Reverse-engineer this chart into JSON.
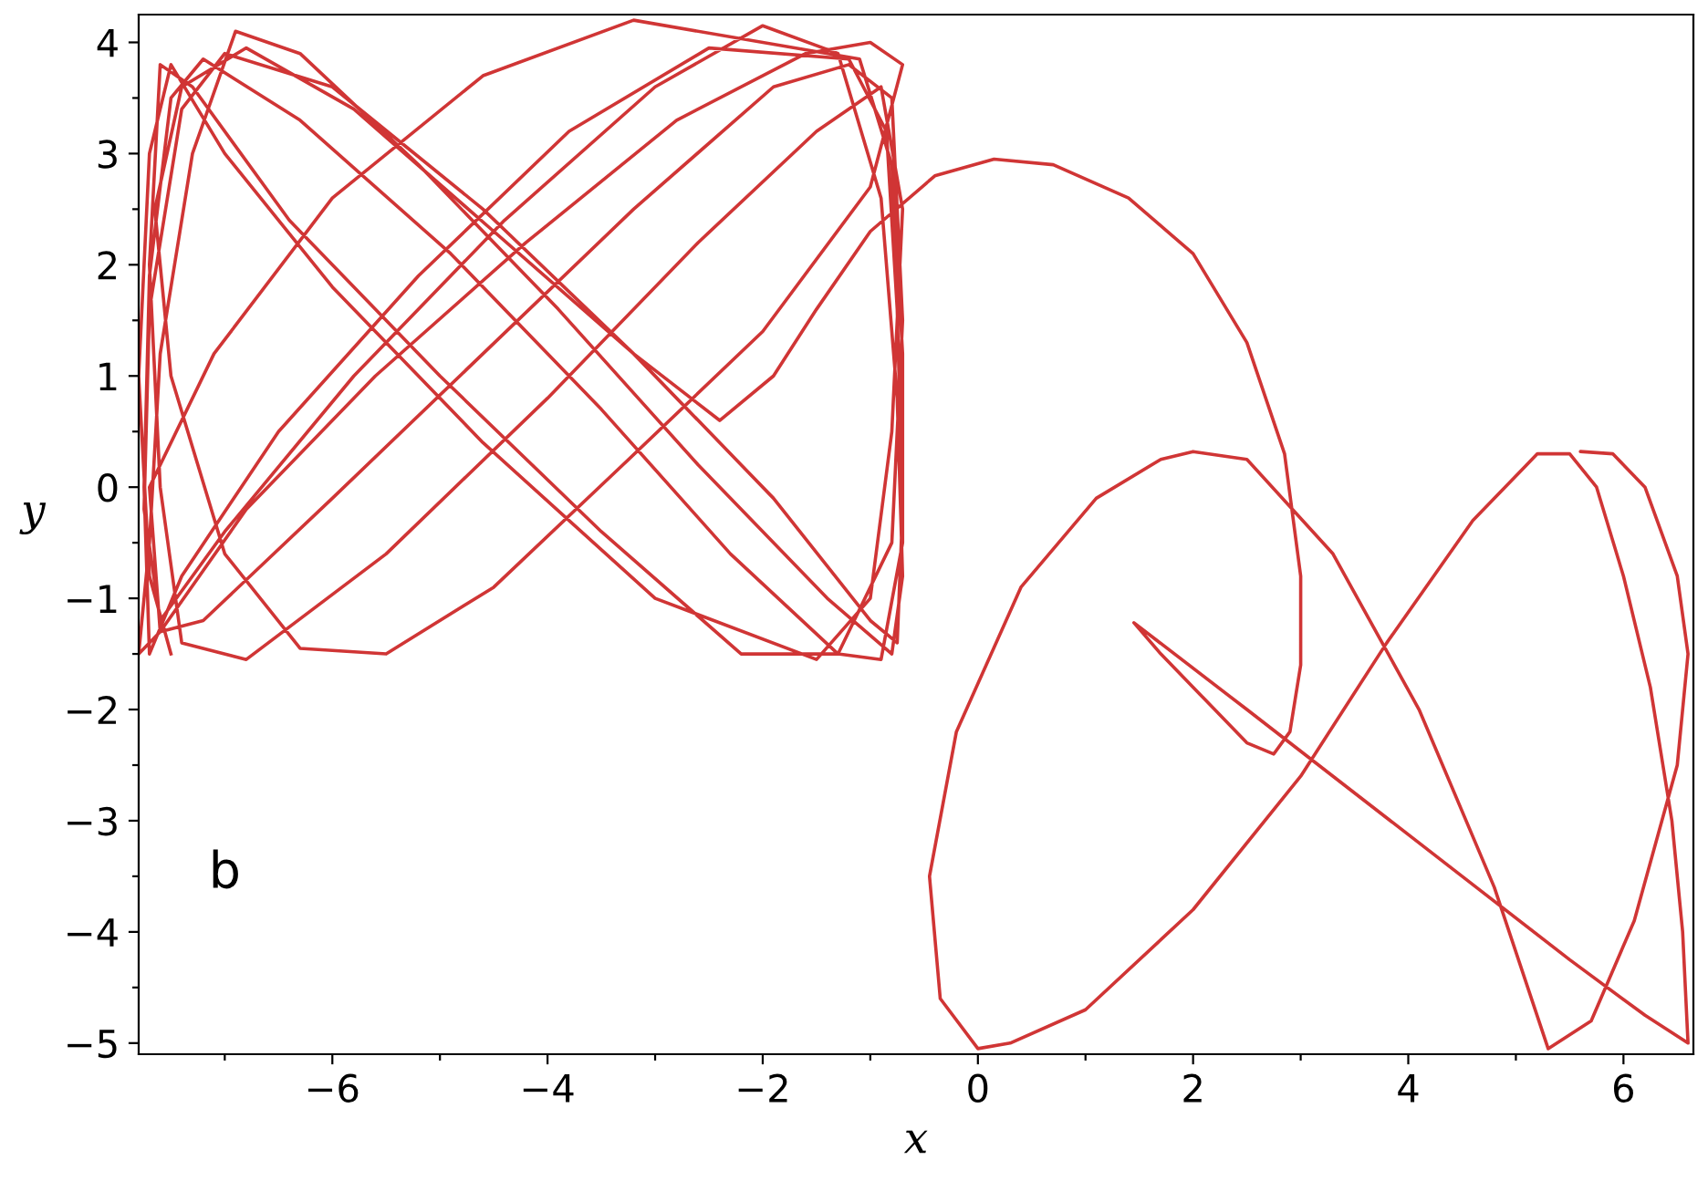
{
  "chart_data": {
    "type": "line",
    "xlabel": "x",
    "ylabel": "y",
    "annotations": [
      "b"
    ],
    "xlim": [
      -7.8,
      6.65
    ],
    "ylim": [
      -5.1,
      4.25
    ],
    "xticks": [
      {
        "value": -7,
        "label": null
      },
      {
        "value": -6,
        "label": "−6"
      },
      {
        "value": -5,
        "label": null
      },
      {
        "value": -4,
        "label": "−4"
      },
      {
        "value": -3,
        "label": null
      },
      {
        "value": -2,
        "label": "−2"
      },
      {
        "value": -1,
        "label": null
      },
      0,
      {
        "value": 1,
        "label": null
      },
      2,
      {
        "value": 3,
        "label": null
      },
      4,
      {
        "value": 5,
        "label": null
      },
      6
    ],
    "yticks": [
      {
        "value": -5,
        "label": "−5"
      },
      {
        "value": -4.5,
        "label": null
      },
      {
        "value": -4,
        "label": "−4"
      },
      {
        "value": -3.5,
        "label": null
      },
      {
        "value": -3,
        "label": "−3"
      },
      {
        "value": -2.5,
        "label": null
      },
      {
        "value": -2,
        "label": "−2"
      },
      {
        "value": -1.5,
        "label": null
      },
      {
        "value": -1,
        "label": "−1"
      },
      {
        "value": -0.5,
        "label": null
      },
      0,
      {
        "value": 0.5,
        "label": null
      },
      1,
      {
        "value": 1.5,
        "label": null
      },
      2,
      {
        "value": 2.5,
        "label": null
      },
      3,
      {
        "value": 3.5,
        "label": null
      },
      4
    ],
    "grid": false,
    "legend": false,
    "marker": "none",
    "line_style": "solid",
    "series": [
      {
        "color": "#d03535",
        "x": [
          6.1,
          5.9,
          5.6,
          5.9,
          6.2,
          6.5,
          6.6,
          6.5,
          6.1,
          5.7,
          5.3,
          4.8,
          4.1,
          3.3,
          2.5,
          2.0,
          1.7,
          1.1,
          0.4,
          -0.2,
          -0.45,
          -0.35,
          0.0,
          0.3,
          1.0,
          2.0,
          3.0,
          3.8,
          4.6,
          5.2,
          5.5,
          5.75,
          6.0,
          6.25,
          6.45,
          6.55,
          6.6,
          6.2,
          5.5,
          4.5,
          3.5,
          2.5,
          1.45,
          1.7,
          2.1,
          2.5,
          2.75,
          2.9,
          3.0,
          3.0,
          2.85,
          2.5,
          2.0,
          1.4,
          0.7,
          0.15,
          -0.4,
          -1.0,
          -1.5,
          -1.9,
          -2.4,
          -3.2,
          -4.5,
          -5.8,
          -6.8,
          -7.4,
          -7.65,
          -7.5,
          -7.0,
          -6.3,
          -5.5,
          -4.5,
          -3.3,
          -2.0,
          -1.0,
          -0.7,
          -1.0,
          -1.6,
          -2.8,
          -4.2,
          -5.6,
          -6.8,
          -7.6,
          -7.8,
          -7.7,
          -7.6,
          -7.3,
          -6.9,
          -6.3,
          -5.2,
          -3.9,
          -2.6,
          -1.4,
          -0.8,
          -0.7,
          -0.75,
          -0.9,
          -1.3,
          -2.0,
          -3.0,
          -4.4,
          -5.8,
          -7.0,
          -7.6,
          -7.75,
          -7.7,
          -7.4,
          -7.0,
          -6.0,
          -4.6,
          -3.2,
          -1.9,
          -1.0,
          -0.75,
          -0.7,
          -0.75,
          -0.85,
          -1.2,
          -2.5,
          -3.8,
          -5.2,
          -6.5,
          -7.4,
          -7.7,
          -7.75,
          -7.7,
          -7.5,
          -7.2,
          -6.3,
          -4.9,
          -3.5,
          -2.3,
          -1.3,
          -0.9,
          -0.7,
          -0.7,
          -0.8,
          -1.1,
          -3.2,
          -4.6,
          -6.0,
          -7.1,
          -7.7,
          -7.6,
          -7.2,
          -6.0,
          -4.6,
          -3.2,
          -1.9,
          -1.2,
          -0.8,
          -0.7,
          -0.8,
          -1.3,
          -2.2,
          -3.5,
          -5.0,
          -6.4,
          -7.3,
          -7.6,
          -7.7,
          -7.6,
          -7.4,
          -6.8,
          -5.5,
          -4.0,
          -2.6,
          -1.5,
          -0.9,
          -0.7,
          -0.8,
          -1.0,
          -1.5,
          -3.0,
          -4.6,
          -6.0,
          -7.0,
          -7.5,
          -7.7,
          -7.8,
          -7.7,
          -7.5
        ],
        "values": [
          0.1,
          0.3,
          0.32,
          0.3,
          0.0,
          -0.8,
          -1.5,
          -2.5,
          -3.9,
          -4.8,
          -5.05,
          -3.6,
          -2.0,
          -0.6,
          0.25,
          0.32,
          0.25,
          -0.1,
          -0.9,
          -2.2,
          -3.5,
          -4.6,
          -5.05,
          -5.0,
          -4.7,
          -3.8,
          -2.6,
          -1.4,
          -0.3,
          0.3,
          0.3,
          0.0,
          -0.8,
          -1.8,
          -3.0,
          -4.0,
          -5.0,
          -4.75,
          -4.25,
          -3.5,
          -2.75,
          -2.0,
          -1.22,
          -1.5,
          -1.9,
          -2.3,
          -2.4,
          -2.2,
          -1.6,
          -0.8,
          0.3,
          1.3,
          2.1,
          2.6,
          2.9,
          2.95,
          2.8,
          2.3,
          1.6,
          1.0,
          0.6,
          1.2,
          2.3,
          3.4,
          3.95,
          3.6,
          2.5,
          1.0,
          -0.6,
          -1.45,
          -1.5,
          -0.9,
          0.2,
          1.4,
          2.7,
          3.8,
          4.0,
          3.9,
          3.3,
          2.2,
          1.0,
          -0.2,
          -1.3,
          -1.5,
          -0.5,
          1.2,
          3.0,
          4.1,
          3.9,
          2.9,
          1.6,
          0.2,
          -1.0,
          -1.5,
          -0.8,
          0.8,
          2.6,
          3.9,
          4.15,
          3.6,
          2.4,
          1.0,
          -0.4,
          -1.2,
          -0.2,
          1.6,
          3.4,
          3.9,
          3.6,
          2.5,
          1.2,
          -0.1,
          -1.2,
          -1.4,
          -0.2,
          1.6,
          3.2,
          3.85,
          3.95,
          3.2,
          1.9,
          0.5,
          -0.8,
          -1.5,
          0.0,
          1.9,
          3.5,
          3.85,
          3.3,
          2.1,
          0.7,
          -0.6,
          -1.5,
          -1.55,
          -0.5,
          1.2,
          2.9,
          3.85,
          4.2,
          3.7,
          2.6,
          1.2,
          0.0,
          -1.3,
          -1.2,
          -0.1,
          1.2,
          2.5,
          3.6,
          3.8,
          3.5,
          1.5,
          -0.5,
          -1.5,
          -1.5,
          -0.4,
          1.0,
          2.4,
          3.6,
          3.8,
          2.0,
          0.0,
          -1.4,
          -1.55,
          -0.6,
          0.8,
          2.2,
          3.2,
          3.6,
          2.5,
          0.5,
          -1.0,
          -1.55,
          -1.0,
          0.4,
          1.8,
          3.0,
          3.8,
          3.0,
          1.0,
          -0.8,
          -1.5
        ]
      }
    ]
  }
}
